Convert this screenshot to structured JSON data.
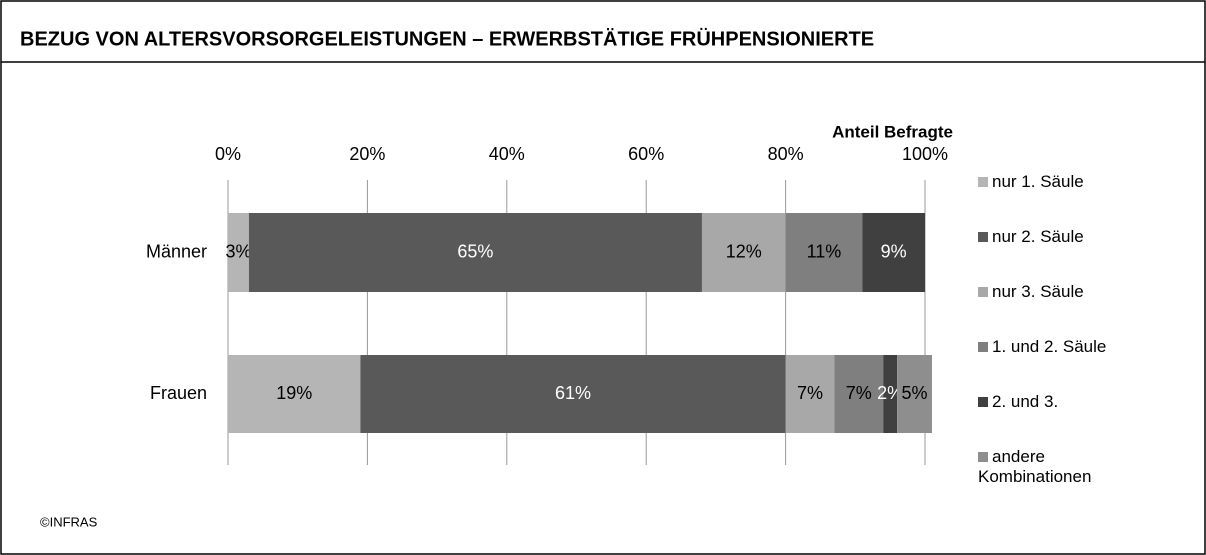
{
  "chart_data": {
    "type": "stacked-barh",
    "title": "BEZUG VON ALTERSVORSORGELEISTUNGEN – ERWERBSTÄTIGE FRÜHPENSIONIERTE",
    "xlabel": "Anteil Befragte",
    "source": "©INFRAS",
    "categories": [
      "Männer",
      "Frauen"
    ],
    "xlim": [
      0,
      100
    ],
    "xticks": [
      {
        "value": 0,
        "label": "0%"
      },
      {
        "value": 20,
        "label": "20%"
      },
      {
        "value": 40,
        "label": "40%"
      },
      {
        "value": 60,
        "label": "60%"
      },
      {
        "value": 80,
        "label": "80%"
      },
      {
        "value": 100,
        "label": "100%"
      }
    ],
    "grid": true,
    "legend": "right",
    "series": [
      {
        "name": "nur 1. Säule",
        "color": "#b5b5b5",
        "label_color": "#000000",
        "values": [
          3,
          19
        ],
        "value_labels": [
          "3%",
          "19%"
        ]
      },
      {
        "name": "nur 2. Säule",
        "color": "#595959",
        "label_color": "#ffffff",
        "values": [
          65,
          61
        ],
        "value_labels": [
          "65%",
          "61%"
        ]
      },
      {
        "name": "nur 3. Säule",
        "color": "#a8a8a8",
        "label_color": "#000000",
        "values": [
          12,
          7
        ],
        "value_labels": [
          "12%",
          "7%"
        ]
      },
      {
        "name": "1. und 2. Säule",
        "color": "#7f7f7f",
        "label_color": "#000000",
        "values": [
          11,
          7
        ],
        "value_labels": [
          "11%",
          "7%"
        ]
      },
      {
        "name": "2. und 3.",
        "color": "#404040",
        "label_color": "#ffffff",
        "values": [
          9,
          2
        ],
        "value_labels": [
          "9%",
          "2%"
        ]
      },
      {
        "name": "andere Kombinationen",
        "color": "#8e8e8e",
        "label_color": "#000000",
        "values": [
          null,
          5
        ],
        "value_labels": [
          null,
          "5%"
        ]
      }
    ]
  }
}
